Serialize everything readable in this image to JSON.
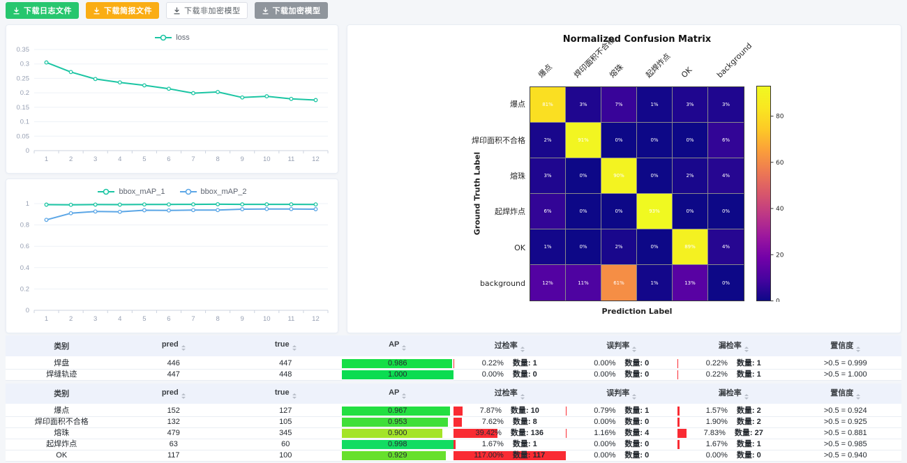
{
  "toolbar": {
    "buttons": [
      {
        "name": "download-log-button",
        "label": "下载日志文件",
        "style": "success",
        "icon": "download-icon"
      },
      {
        "name": "download-report-button",
        "label": "下载简报文件",
        "style": "warning",
        "icon": "download-icon"
      },
      {
        "name": "download-plain-model-button",
        "label": "下载非加密模型",
        "style": "plain",
        "icon": "download-icon"
      },
      {
        "name": "download-encrypted-model-button",
        "label": "下载加密模型",
        "style": "info",
        "icon": "download-icon"
      }
    ]
  },
  "chart_data": [
    {
      "type": "line",
      "title": "loss",
      "x": [
        1,
        2,
        3,
        4,
        5,
        6,
        7,
        8,
        9,
        10,
        11,
        12
      ],
      "xlabel": "",
      "ylabel": "",
      "ylim": [
        0,
        0.35
      ],
      "yticks": [
        0,
        0.05,
        0.1,
        0.15,
        0.2,
        0.25,
        0.3,
        0.35
      ],
      "grid": true,
      "legend_position": "top",
      "series": [
        {
          "name": "loss",
          "color": "#1bc5a3",
          "values": [
            0.305,
            0.272,
            0.248,
            0.236,
            0.226,
            0.214,
            0.199,
            0.203,
            0.184,
            0.188,
            0.179,
            0.175
          ]
        }
      ]
    },
    {
      "type": "line",
      "title": "bbox_mAP",
      "x": [
        1,
        2,
        3,
        4,
        5,
        6,
        7,
        8,
        9,
        10,
        11,
        12
      ],
      "xlabel": "",
      "ylabel": "",
      "ylim": [
        0,
        1
      ],
      "yticks": [
        0,
        0.2,
        0.4,
        0.6,
        0.8,
        1
      ],
      "grid": true,
      "legend_position": "top",
      "series": [
        {
          "name": "bbox_mAP_1",
          "color": "#1bc5a3",
          "values": [
            0.99,
            0.989,
            0.991,
            0.99,
            0.992,
            0.992,
            0.993,
            0.994,
            0.993,
            0.993,
            0.993,
            0.992
          ]
        },
        {
          "name": "bbox_mAP_2",
          "color": "#5ba6e6",
          "values": [
            0.848,
            0.91,
            0.926,
            0.923,
            0.938,
            0.936,
            0.939,
            0.939,
            0.948,
            0.95,
            0.949,
            0.948
          ]
        }
      ]
    },
    {
      "type": "heatmap",
      "title": "Normalized Confusion Matrix",
      "xlabel": "Prediction Label",
      "ylabel": "Ground Truth Label",
      "categories": [
        "爆点",
        "焊印面积不合格",
        "熔珠",
        "起焊炸点",
        "OK",
        "background"
      ],
      "matrix": [
        [
          81,
          3,
          7,
          1,
          3,
          3
        ],
        [
          2,
          91,
          0,
          0,
          0,
          6
        ],
        [
          3,
          0,
          90,
          0,
          2,
          4
        ],
        [
          6,
          0,
          0,
          93,
          0,
          0
        ],
        [
          1,
          0,
          2,
          0,
          89,
          4
        ],
        [
          12,
          11,
          61,
          1,
          13,
          0
        ]
      ],
      "cell_unit": "%",
      "vmin": 0,
      "vmax": 93,
      "colormap": "plasma",
      "colorbar_ticks": [
        0,
        20,
        40,
        60,
        80
      ]
    }
  ],
  "tables": [
    {
      "headers": [
        {
          "label": "类别",
          "sortable": false
        },
        {
          "label": "pred",
          "sortable": true
        },
        {
          "label": "true",
          "sortable": true
        },
        {
          "label": "AP",
          "sortable": true
        },
        {
          "label": "过检率",
          "sortable": true
        },
        {
          "label": "误判率",
          "sortable": true
        },
        {
          "label": "漏检率",
          "sortable": true
        },
        {
          "label": "置信度",
          "sortable": true
        }
      ],
      "rows": [
        {
          "category": "焊盘",
          "pred": "446",
          "true": "447",
          "ap": {
            "value": "0.986",
            "width": 98.6,
            "color": "#15df47"
          },
          "over": {
            "pct": "0.22%",
            "count": "数量: 1",
            "bar": 0.22
          },
          "mis": {
            "pct": "0.00%",
            "count": "数量: 0",
            "bar": 0
          },
          "miss": {
            "pct": "0.22%",
            "count": "数量: 1",
            "bar": 0.22
          },
          "conf": ">0.5 = 0.999"
        },
        {
          "category": "焊缝轨迹",
          "pred": "447",
          "true": "448",
          "ap": {
            "value": "1.000",
            "width": 100,
            "color": "#0bdc51"
          },
          "over": {
            "pct": "0.00%",
            "count": "数量: 0",
            "bar": 0
          },
          "mis": {
            "pct": "0.00%",
            "count": "数量: 0",
            "bar": 0
          },
          "miss": {
            "pct": "0.22%",
            "count": "数量: 1",
            "bar": 0.22
          },
          "conf": ">0.5 = 1.000"
        }
      ]
    },
    {
      "headers": [
        {
          "label": "类别",
          "sortable": false
        },
        {
          "label": "pred",
          "sortable": true
        },
        {
          "label": "true",
          "sortable": true
        },
        {
          "label": "AP",
          "sortable": true
        },
        {
          "label": "过检率",
          "sortable": true
        },
        {
          "label": "误判率",
          "sortable": true
        },
        {
          "label": "漏检率",
          "sortable": true
        },
        {
          "label": "置信度",
          "sortable": true
        }
      ],
      "rows": [
        {
          "category": "爆点",
          "pred": "152",
          "true": "127",
          "ap": {
            "value": "0.967",
            "width": 96.7,
            "color": "#23df41"
          },
          "over": {
            "pct": "7.87%",
            "count": "数量: 10",
            "bar": 7.87
          },
          "mis": {
            "pct": "0.79%",
            "count": "数量: 1",
            "bar": 0.79
          },
          "miss": {
            "pct": "1.57%",
            "count": "数量: 2",
            "bar": 1.57
          },
          "conf": ">0.5 = 0.924"
        },
        {
          "category": "焊印面积不合格",
          "pred": "132",
          "true": "105",
          "ap": {
            "value": "0.953",
            "width": 95.3,
            "color": "#3fdf39"
          },
          "over": {
            "pct": "7.62%",
            "count": "数量: 8",
            "bar": 7.62
          },
          "mis": {
            "pct": "0.00%",
            "count": "数量: 0",
            "bar": 0
          },
          "miss": {
            "pct": "1.90%",
            "count": "数量: 2",
            "bar": 1.9
          },
          "conf": ">0.5 = 0.925"
        },
        {
          "category": "熔珠",
          "pred": "479",
          "true": "345",
          "ap": {
            "value": "0.900",
            "width": 90,
            "color": "#a4e428"
          },
          "over": {
            "pct": "39.42%",
            "count": "数量: 136",
            "bar": 39.42
          },
          "mis": {
            "pct": "1.16%",
            "count": "数量: 4",
            "bar": 1.16
          },
          "miss": {
            "pct": "7.83%",
            "count": "数量: 27",
            "bar": 7.83
          },
          "conf": ">0.5 = 0.881"
        },
        {
          "category": "起焊炸点",
          "pred": "63",
          "true": "60",
          "ap": {
            "value": "0.998",
            "width": 99.8,
            "color": "#12dc62"
          },
          "over": {
            "pct": "1.67%",
            "count": "数量: 1",
            "bar": 1.67
          },
          "mis": {
            "pct": "0.00%",
            "count": "数量: 0",
            "bar": 0
          },
          "miss": {
            "pct": "1.67%",
            "count": "数量: 1",
            "bar": 1.67
          },
          "conf": ">0.5 = 0.985"
        },
        {
          "category": "OK",
          "pred": "117",
          "true": "100",
          "ap": {
            "value": "0.929",
            "width": 92.9,
            "color": "#67e02d"
          },
          "over": {
            "pct": "117.00%",
            "count": "数量: 117",
            "bar": 117
          },
          "mis": {
            "pct": "0.00%",
            "count": "数量: 0",
            "bar": 0
          },
          "miss": {
            "pct": "0.00%",
            "count": "数量: 0",
            "bar": 0
          },
          "conf": ">0.5 = 0.940"
        }
      ]
    }
  ],
  "colors": {
    "bar_red": "#f92b33",
    "table_header_bg": "#eef2fb",
    "series_teal": "#1bc5a3",
    "series_blue": "#5ba6e6",
    "button_green": "#27c66e",
    "button_orange": "#faad14",
    "button_gray": "#8f959c"
  }
}
